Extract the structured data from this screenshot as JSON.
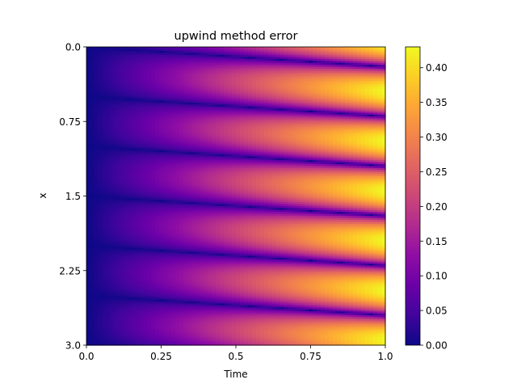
{
  "chart_data": {
    "type": "heatmap",
    "title": "upwind method error",
    "xlabel": "Time",
    "ylabel": "x",
    "xlim": [
      0.0,
      1.0
    ],
    "ylim": [
      0.0,
      3.0
    ],
    "y_inverted": true,
    "x_ticks": [
      0.0,
      0.25,
      0.5,
      0.75,
      1.0
    ],
    "x_tick_labels": [
      "0.0",
      "0.25",
      "0.5",
      "0.75",
      "1.0"
    ],
    "y_ticks": [
      0.0,
      0.75,
      1.5,
      2.25,
      3.0
    ],
    "y_tick_labels": [
      "0.0",
      "0.75",
      "1.5",
      "2.25",
      "3.0"
    ],
    "colormap": "plasma",
    "colorbar": {
      "vmin": 0.0,
      "vmax": 0.43,
      "ticks": [
        0.0,
        0.05,
        0.1,
        0.15,
        0.2,
        0.25,
        0.3,
        0.35,
        0.4
      ],
      "tick_labels": [
        "0.00",
        "0.05",
        "0.10",
        "0.15",
        "0.20",
        "0.25",
        "0.30",
        "0.35",
        "0.40"
      ]
    },
    "field": {
      "description_of_values": "error magnitude grows roughly linearly in time and oscillates with x; zero-error bands run diagonally downward to the right",
      "max_error_at_t1": 0.43,
      "band_wavelength_x": 0.5,
      "band_drift_x_per_time": 0.2
    }
  }
}
